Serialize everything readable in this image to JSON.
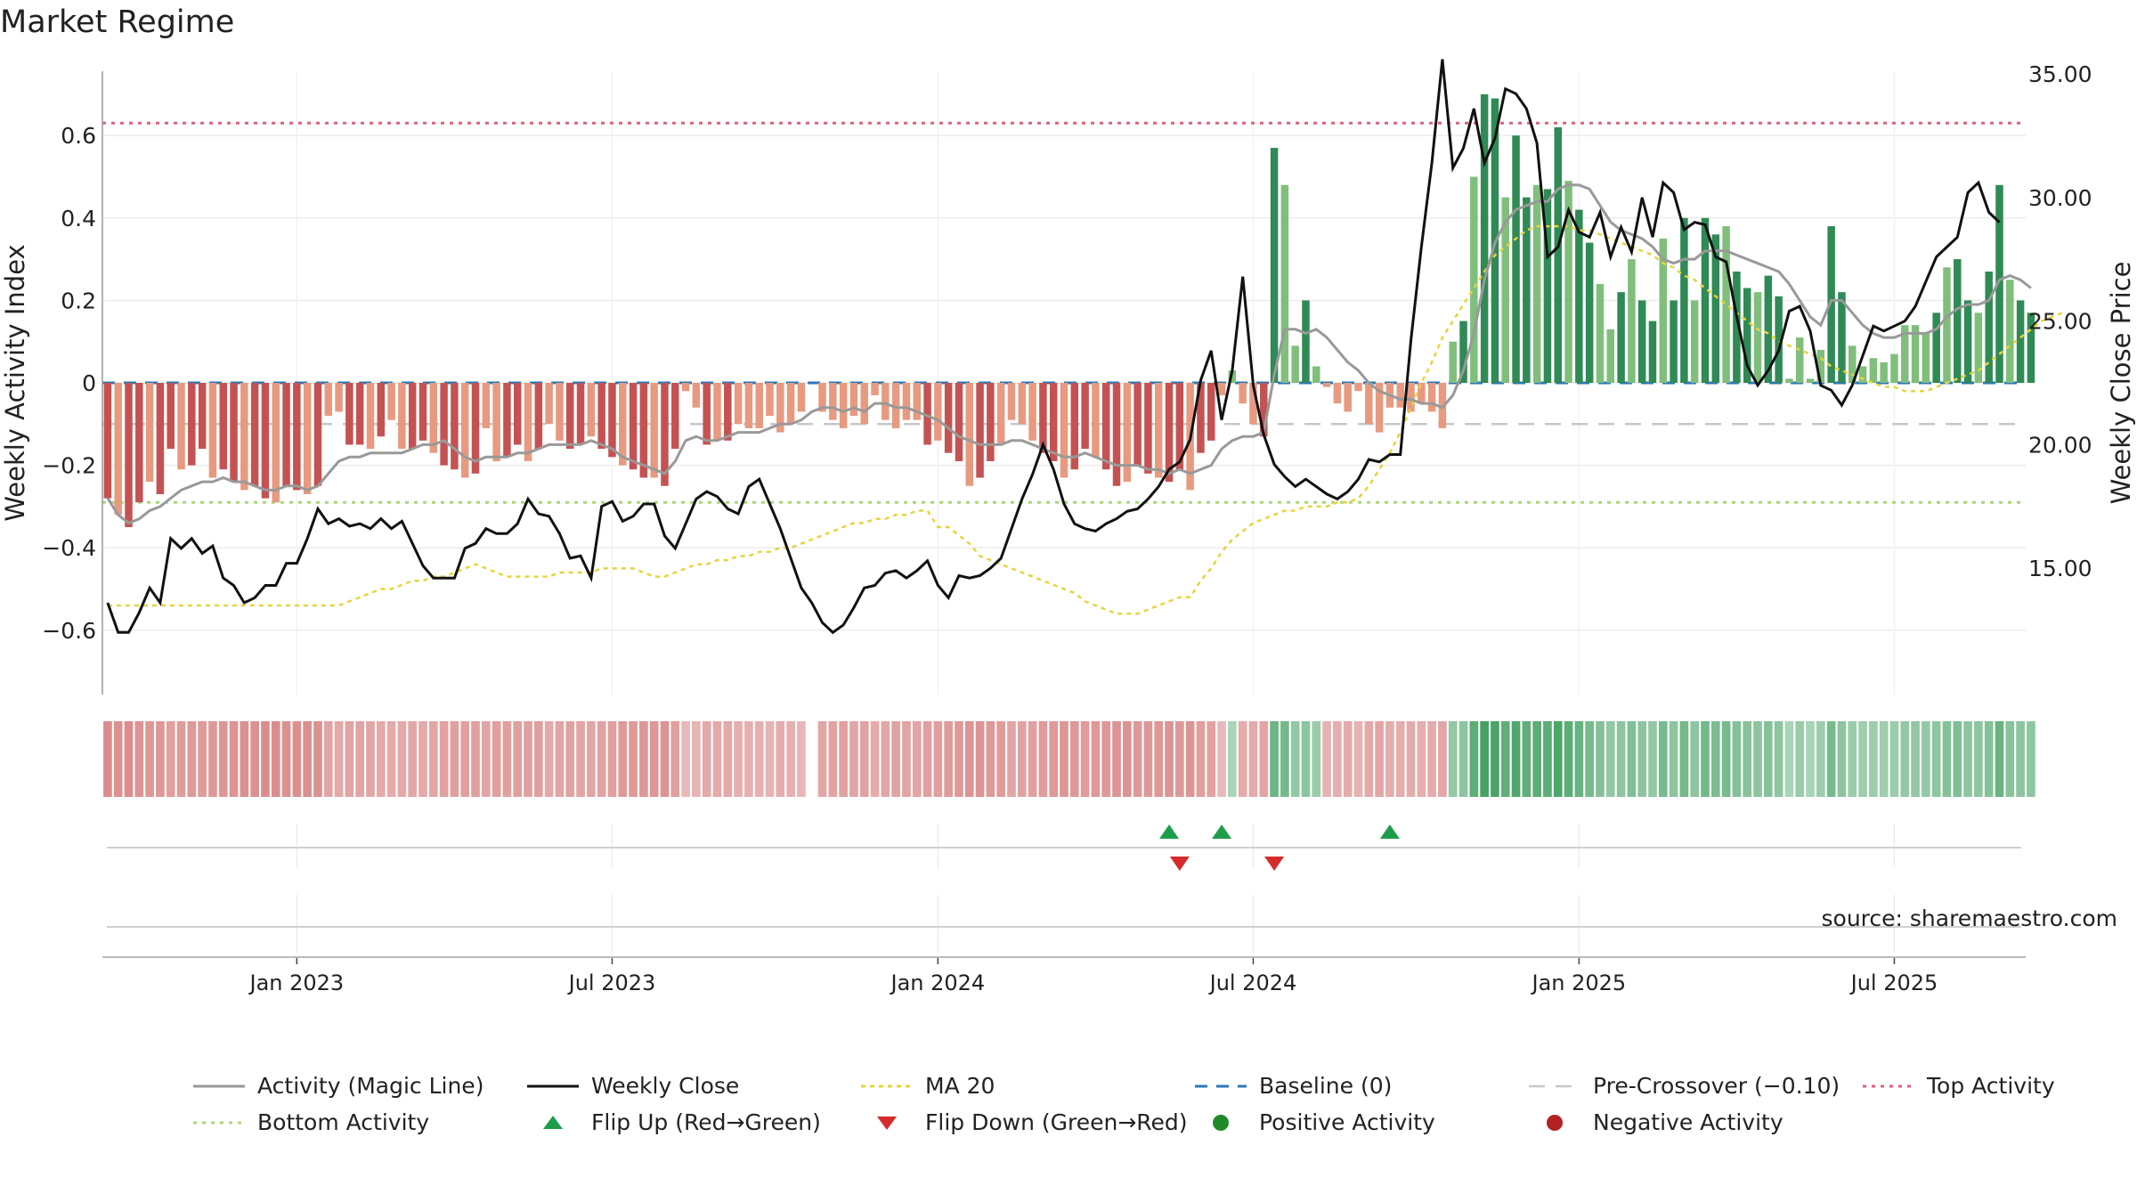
{
  "title": "Market Regime",
  "source_note": "source: sharemaestro.com",
  "colors": {
    "neg_dark": "#c55252",
    "neg_light": "#e79a7f",
    "pos_dark": "#2f8a55",
    "pos_light": "#7fbf7b",
    "close": "#111111",
    "activity_line": "#999999",
    "ma20": "#e6d43a",
    "baseline": "#2b78b8",
    "pre_crossover": "#c8c8c8",
    "top_activity": "#e0607a",
    "bottom_activity": "#a8d878",
    "flip_up": "#1e9e4a",
    "flip_down": "#d62b2b"
  },
  "chart_data": {
    "type": "bar",
    "y_left_label": "Weekly Activity Index",
    "y_right_label": "Weekly Close Price",
    "y_left_ticks": [
      "0.6",
      "0.4",
      "0.2",
      "0",
      "−0.2",
      "−0.4",
      "−0.6"
    ],
    "y_left_tick_values": [
      0.6,
      0.4,
      0.2,
      0,
      -0.2,
      -0.4,
      -0.6
    ],
    "y_right_ticks": [
      "35.00",
      "30.00",
      "25.00",
      "20.00",
      "15.00"
    ],
    "y_right_tick_values": [
      35,
      30,
      25,
      20,
      15
    ],
    "ylim_left": [
      -0.75,
      0.75
    ],
    "ylim_right": [
      12.5,
      37.5
    ],
    "x_ticks": [
      "Jan 2023",
      "Jul 2023",
      "Jan 2024",
      "Jul 2024",
      "Jan 2025",
      "Jul 2025"
    ],
    "x_tick_weeks": [
      18,
      48,
      79,
      109,
      140,
      170
    ],
    "n_weeks": 183,
    "grid": true,
    "legend_position": "bottom",
    "reference_lines": {
      "baseline": 0,
      "pre_crossover": -0.1,
      "top_activity": 0.63,
      "bottom_activity": -0.29
    },
    "activity_values": [
      -0.28,
      -0.32,
      -0.35,
      -0.29,
      -0.24,
      -0.27,
      -0.16,
      -0.21,
      -0.2,
      -0.16,
      -0.23,
      -0.21,
      -0.24,
      -0.26,
      -0.25,
      -0.28,
      -0.29,
      -0.25,
      -0.26,
      -0.27,
      -0.25,
      -0.08,
      -0.07,
      -0.15,
      -0.15,
      -0.16,
      -0.13,
      -0.09,
      -0.16,
      -0.16,
      -0.14,
      -0.17,
      -0.2,
      -0.21,
      -0.23,
      -0.22,
      -0.11,
      -0.19,
      -0.18,
      -0.15,
      -0.19,
      -0.16,
      -0.1,
      -0.14,
      -0.16,
      -0.15,
      -0.13,
      -0.16,
      -0.18,
      -0.2,
      -0.21,
      -0.23,
      -0.23,
      -0.25,
      -0.16,
      -0.02,
      -0.06,
      -0.15,
      -0.14,
      -0.14,
      -0.1,
      -0.11,
      -0.11,
      -0.08,
      -0.12,
      -0.1,
      -0.07,
      null,
      -0.07,
      -0.09,
      -0.11,
      -0.08,
      -0.1,
      -0.03,
      -0.09,
      -0.11,
      -0.09,
      -0.09,
      -0.15,
      -0.14,
      -0.17,
      -0.19,
      -0.25,
      -0.23,
      -0.19,
      -0.15,
      -0.09,
      -0.1,
      -0.14,
      -0.17,
      -0.19,
      -0.23,
      -0.21,
      -0.16,
      -0.18,
      -0.21,
      -0.25,
      -0.24,
      -0.2,
      -0.22,
      -0.23,
      -0.24,
      -0.21,
      -0.26,
      -0.17,
      -0.14,
      -0.03,
      0.03,
      -0.05,
      -0.1,
      -0.13,
      0.57,
      0.48,
      0.09,
      0.2,
      0.04,
      -0.01,
      -0.05,
      -0.07,
      -0.02,
      -0.1,
      -0.12,
      -0.06,
      -0.06,
      -0.07,
      -0.05,
      -0.07,
      -0.11,
      0.1,
      0.15,
      0.5,
      0.7,
      0.69,
      0.45,
      0.6,
      0.45,
      0.48,
      0.47,
      0.62,
      0.49,
      0.42,
      0.34,
      0.24,
      0.13,
      0.22,
      0.3,
      0.2,
      0.15,
      0.35,
      0.2,
      0.4,
      0.2,
      0.4,
      0.36,
      0.38,
      0.27,
      0.23,
      0.22,
      0.26,
      0.21,
      0.01,
      0.11,
      0.01,
      0.08,
      0.38,
      0.22,
      0.09,
      0.04,
      0.06,
      0.05,
      0.07,
      0.14,
      0.14,
      0.12,
      0.17,
      0.28,
      0.3,
      0.2,
      0.17,
      0.27,
      0.48,
      0.25,
      0.2,
      0.17
    ],
    "activity_line": [
      -0.28,
      -0.32,
      -0.34,
      -0.33,
      -0.31,
      -0.3,
      -0.28,
      -0.26,
      -0.25,
      -0.24,
      -0.24,
      -0.23,
      -0.24,
      -0.24,
      -0.25,
      -0.26,
      -0.26,
      -0.25,
      -0.25,
      -0.26,
      -0.25,
      -0.22,
      -0.19,
      -0.18,
      -0.18,
      -0.17,
      -0.17,
      -0.17,
      -0.17,
      -0.16,
      -0.15,
      -0.15,
      -0.14,
      -0.16,
      -0.18,
      -0.19,
      -0.18,
      -0.18,
      -0.18,
      -0.17,
      -0.17,
      -0.16,
      -0.15,
      -0.15,
      -0.15,
      -0.15,
      -0.14,
      -0.15,
      -0.16,
      -0.18,
      -0.19,
      -0.2,
      -0.21,
      -0.22,
      -0.19,
      -0.14,
      -0.13,
      -0.14,
      -0.14,
      -0.13,
      -0.12,
      -0.12,
      -0.12,
      -0.11,
      -0.1,
      -0.1,
      -0.09,
      -0.07,
      -0.06,
      -0.06,
      -0.07,
      -0.06,
      -0.07,
      -0.05,
      -0.05,
      -0.06,
      -0.06,
      -0.07,
      -0.08,
      -0.09,
      -0.11,
      -0.13,
      -0.14,
      -0.15,
      -0.15,
      -0.15,
      -0.14,
      -0.14,
      -0.15,
      -0.16,
      -0.17,
      -0.18,
      -0.18,
      -0.17,
      -0.18,
      -0.19,
      -0.2,
      -0.2,
      -0.2,
      -0.21,
      -0.21,
      -0.22,
      -0.21,
      -0.22,
      -0.21,
      -0.2,
      -0.16,
      -0.14,
      -0.13,
      -0.13,
      -0.12,
      0.02,
      0.13,
      0.13,
      0.12,
      0.13,
      0.11,
      0.08,
      0.05,
      0.03,
      0.0,
      -0.02,
      -0.03,
      -0.04,
      -0.04,
      -0.05,
      -0.05,
      -0.06,
      -0.03,
      0.03,
      0.12,
      0.25,
      0.34,
      0.39,
      0.42,
      0.43,
      0.44,
      0.44,
      0.47,
      0.48,
      0.48,
      0.47,
      0.43,
      0.39,
      0.37,
      0.36,
      0.35,
      0.33,
      0.3,
      0.29,
      0.3,
      0.3,
      0.32,
      0.32,
      0.32,
      0.31,
      0.3,
      0.29,
      0.28,
      0.27,
      0.24,
      0.2,
      0.16,
      0.14,
      0.2,
      0.2,
      0.17,
      0.14,
      0.12,
      0.11,
      0.11,
      0.12,
      0.12,
      0.12,
      0.13,
      0.16,
      0.18,
      0.19,
      0.19,
      0.2,
      0.25,
      0.26,
      0.25,
      0.23
    ],
    "ma20": [
      -0.54,
      -0.54,
      -0.54,
      -0.54,
      -0.54,
      -0.54,
      -0.54,
      -0.54,
      -0.54,
      -0.54,
      -0.54,
      -0.54,
      -0.54,
      -0.54,
      -0.54,
      -0.54,
      -0.54,
      -0.54,
      -0.54,
      -0.54,
      -0.54,
      -0.54,
      -0.54,
      -0.53,
      -0.52,
      -0.51,
      -0.5,
      -0.5,
      -0.49,
      -0.48,
      -0.48,
      -0.47,
      -0.47,
      -0.46,
      -0.45,
      -0.44,
      -0.45,
      -0.46,
      -0.47,
      -0.47,
      -0.47,
      -0.47,
      -0.47,
      -0.46,
      -0.46,
      -0.46,
      -0.46,
      -0.45,
      -0.45,
      -0.45,
      -0.45,
      -0.46,
      -0.47,
      -0.47,
      -0.46,
      -0.45,
      -0.44,
      -0.44,
      -0.43,
      -0.43,
      -0.42,
      -0.42,
      -0.41,
      -0.41,
      -0.4,
      -0.4,
      -0.39,
      -0.38,
      -0.37,
      -0.36,
      -0.35,
      -0.34,
      -0.34,
      -0.33,
      -0.33,
      -0.32,
      -0.32,
      -0.31,
      -0.31,
      -0.35,
      -0.35,
      -0.37,
      -0.39,
      -0.42,
      -0.43,
      -0.44,
      -0.45,
      -0.46,
      -0.47,
      -0.48,
      -0.49,
      -0.5,
      -0.51,
      -0.53,
      -0.54,
      -0.55,
      -0.56,
      -0.56,
      -0.56,
      -0.55,
      -0.54,
      -0.53,
      -0.52,
      -0.52,
      -0.48,
      -0.45,
      -0.41,
      -0.38,
      -0.36,
      -0.34,
      -0.33,
      -0.32,
      -0.31,
      -0.31,
      -0.3,
      -0.3,
      -0.3,
      -0.29,
      -0.29,
      -0.28,
      -0.25,
      -0.21,
      -0.17,
      -0.12,
      -0.06,
      0.0,
      0.05,
      0.11,
      0.15,
      0.19,
      0.23,
      0.27,
      0.31,
      0.33,
      0.35,
      0.37,
      0.38,
      0.38,
      0.38,
      0.38,
      0.37,
      0.37,
      0.36,
      0.35,
      0.34,
      0.33,
      0.32,
      0.31,
      0.29,
      0.28,
      0.26,
      0.25,
      0.23,
      0.21,
      0.19,
      0.17,
      0.15,
      0.13,
      0.12,
      0.1,
      0.09,
      0.08,
      0.07,
      0.06,
      0.04,
      0.03,
      0.02,
      0.01,
      0.0,
      -0.01,
      -0.01,
      -0.02,
      -0.02,
      -0.02,
      -0.01,
      0.0,
      0.01,
      0.02,
      0.03,
      0.05,
      0.07,
      0.09,
      0.11,
      0.13,
      0.15,
      0.16,
      0.17
    ],
    "weekly_close": [
      13.6,
      12.4,
      12.4,
      13.2,
      14.2,
      13.6,
      16.2,
      15.8,
      16.2,
      15.6,
      15.9,
      14.6,
      14.3,
      13.6,
      13.8,
      14.3,
      14.3,
      15.2,
      15.2,
      16.2,
      17.4,
      16.8,
      17.0,
      16.7,
      16.8,
      16.6,
      17.0,
      16.6,
      16.9,
      16.0,
      15.1,
      14.6,
      14.6,
      14.6,
      15.8,
      16.0,
      16.6,
      16.4,
      16.4,
      16.8,
      17.8,
      17.2,
      17.1,
      16.4,
      15.4,
      15.5,
      14.6,
      17.5,
      17.7,
      16.9,
      17.1,
      17.6,
      17.6,
      16.3,
      15.8,
      16.8,
      17.8,
      18.1,
      17.9,
      17.4,
      17.2,
      18.3,
      18.6,
      17.6,
      16.6,
      15.4,
      14.2,
      13.6,
      12.8,
      12.4,
      12.7,
      13.4,
      14.2,
      14.3,
      14.8,
      14.9,
      14.6,
      14.9,
      15.3,
      14.3,
      13.8,
      14.7,
      14.6,
      14.7,
      15.0,
      15.4,
      16.6,
      17.8,
      18.8,
      20.0,
      19.0,
      17.6,
      16.8,
      16.6,
      16.5,
      16.8,
      17.0,
      17.3,
      17.4,
      17.8,
      18.3,
      19.0,
      19.3,
      20.2,
      22.6,
      23.8,
      21.0,
      23.0,
      26.8,
      22.4,
      20.4,
      19.2,
      18.7,
      18.3,
      18.6,
      18.3,
      18.0,
      17.8,
      18.1,
      18.6,
      19.4,
      19.3,
      19.6,
      19.6,
      24.2,
      28.0,
      31.4,
      35.6,
      31.2,
      32.0,
      33.6,
      31.4,
      32.4,
      34.4,
      34.2,
      33.6,
      32.2,
      27.6,
      28.0,
      29.5,
      28.6,
      28.4,
      29.4,
      27.6,
      28.8,
      27.8,
      30.0,
      28.4,
      30.6,
      30.2,
      28.7,
      29.0,
      28.9,
      27.6,
      27.4,
      25.2,
      23.2,
      22.4,
      23.0,
      23.8,
      25.4,
      25.6,
      24.6,
      22.4,
      22.2,
      21.6,
      22.4,
      23.6,
      24.8,
      24.6,
      24.8,
      25.0,
      25.6,
      26.6,
      27.6,
      28.0,
      28.4,
      30.2,
      30.6,
      29.4,
      29.0
    ],
    "regime_strip": {
      "gap_week": 67,
      "levels": [
        0.62,
        0.6,
        0.64,
        0.58,
        0.55,
        0.56,
        0.5,
        0.52,
        0.53,
        0.52,
        0.55,
        0.56,
        0.58,
        0.6,
        0.6,
        0.62,
        0.63,
        0.6,
        0.6,
        0.61,
        0.6,
        0.45,
        0.42,
        0.45,
        0.45,
        0.44,
        0.42,
        0.4,
        0.42,
        0.43,
        0.42,
        0.44,
        0.47,
        0.48,
        0.5,
        0.5,
        0.45,
        0.5,
        0.5,
        0.48,
        0.5,
        0.48,
        0.42,
        0.45,
        0.46,
        0.45,
        0.44,
        0.46,
        0.5,
        0.53,
        0.54,
        0.56,
        0.56,
        0.58,
        0.5,
        0.3,
        0.34,
        0.42,
        0.42,
        0.42,
        0.36,
        0.36,
        0.36,
        0.34,
        0.38,
        0.36,
        0.32,
        0,
        0.44,
        0.46,
        0.48,
        0.45,
        0.46,
        0.4,
        0.44,
        0.46,
        0.45,
        0.45,
        0.5,
        0.5,
        0.52,
        0.54,
        0.58,
        0.57,
        0.54,
        0.52,
        0.45,
        0.46,
        0.5,
        0.52,
        0.54,
        0.56,
        0.55,
        0.52,
        0.53,
        0.55,
        0.58,
        0.57,
        0.54,
        0.55,
        0.56,
        0.57,
        0.55,
        0.58,
        0.5,
        0.46,
        0.3,
        0.3,
        0.4,
        0.42,
        0.45,
        0.7,
        0.65,
        0.45,
        0.5,
        0.4,
        0.35,
        0.38,
        0.4,
        0.35,
        0.42,
        0.44,
        0.38,
        0.38,
        0.4,
        0.38,
        0.4,
        0.44,
        0.45,
        0.5,
        0.8,
        0.95,
        0.92,
        0.78,
        0.88,
        0.78,
        0.8,
        0.8,
        0.9,
        0.8,
        0.72,
        0.62,
        0.55,
        0.45,
        0.5,
        0.58,
        0.5,
        0.45,
        0.62,
        0.5,
        0.65,
        0.5,
        0.65,
        0.6,
        0.62,
        0.55,
        0.52,
        0.5,
        0.54,
        0.5,
        0.3,
        0.42,
        0.32,
        0.4,
        0.62,
        0.5,
        0.42,
        0.38,
        0.4,
        0.38,
        0.4,
        0.45,
        0.45,
        0.44,
        0.48,
        0.55,
        0.58,
        0.5,
        0.48,
        0.55,
        0.72,
        0.52,
        0.5,
        0.48
      ]
    },
    "flip_up_weeks": [
      101,
      106,
      122
    ],
    "flip_down_weeks": [
      102,
      111
    ],
    "legend": [
      {
        "key": "activity_line",
        "label": "Activity (Magic Line)"
      },
      {
        "key": "weekly_close",
        "label": "Weekly Close"
      },
      {
        "key": "ma20",
        "label": "MA 20"
      },
      {
        "key": "baseline",
        "label": "Baseline (0)"
      },
      {
        "key": "pre_crossover",
        "label": "Pre-Crossover (−0.10)"
      },
      {
        "key": "top_activity",
        "label": "Top Activity"
      },
      {
        "key": "bottom_activity",
        "label": "Bottom Activity"
      },
      {
        "key": "flip_up",
        "label": "Flip Up (Red→Green)"
      },
      {
        "key": "flip_down",
        "label": "Flip Down (Green→Red)"
      },
      {
        "key": "positive_activity",
        "label": "Positive Activity"
      },
      {
        "key": "negative_activity",
        "label": "Negative Activity"
      }
    ]
  }
}
